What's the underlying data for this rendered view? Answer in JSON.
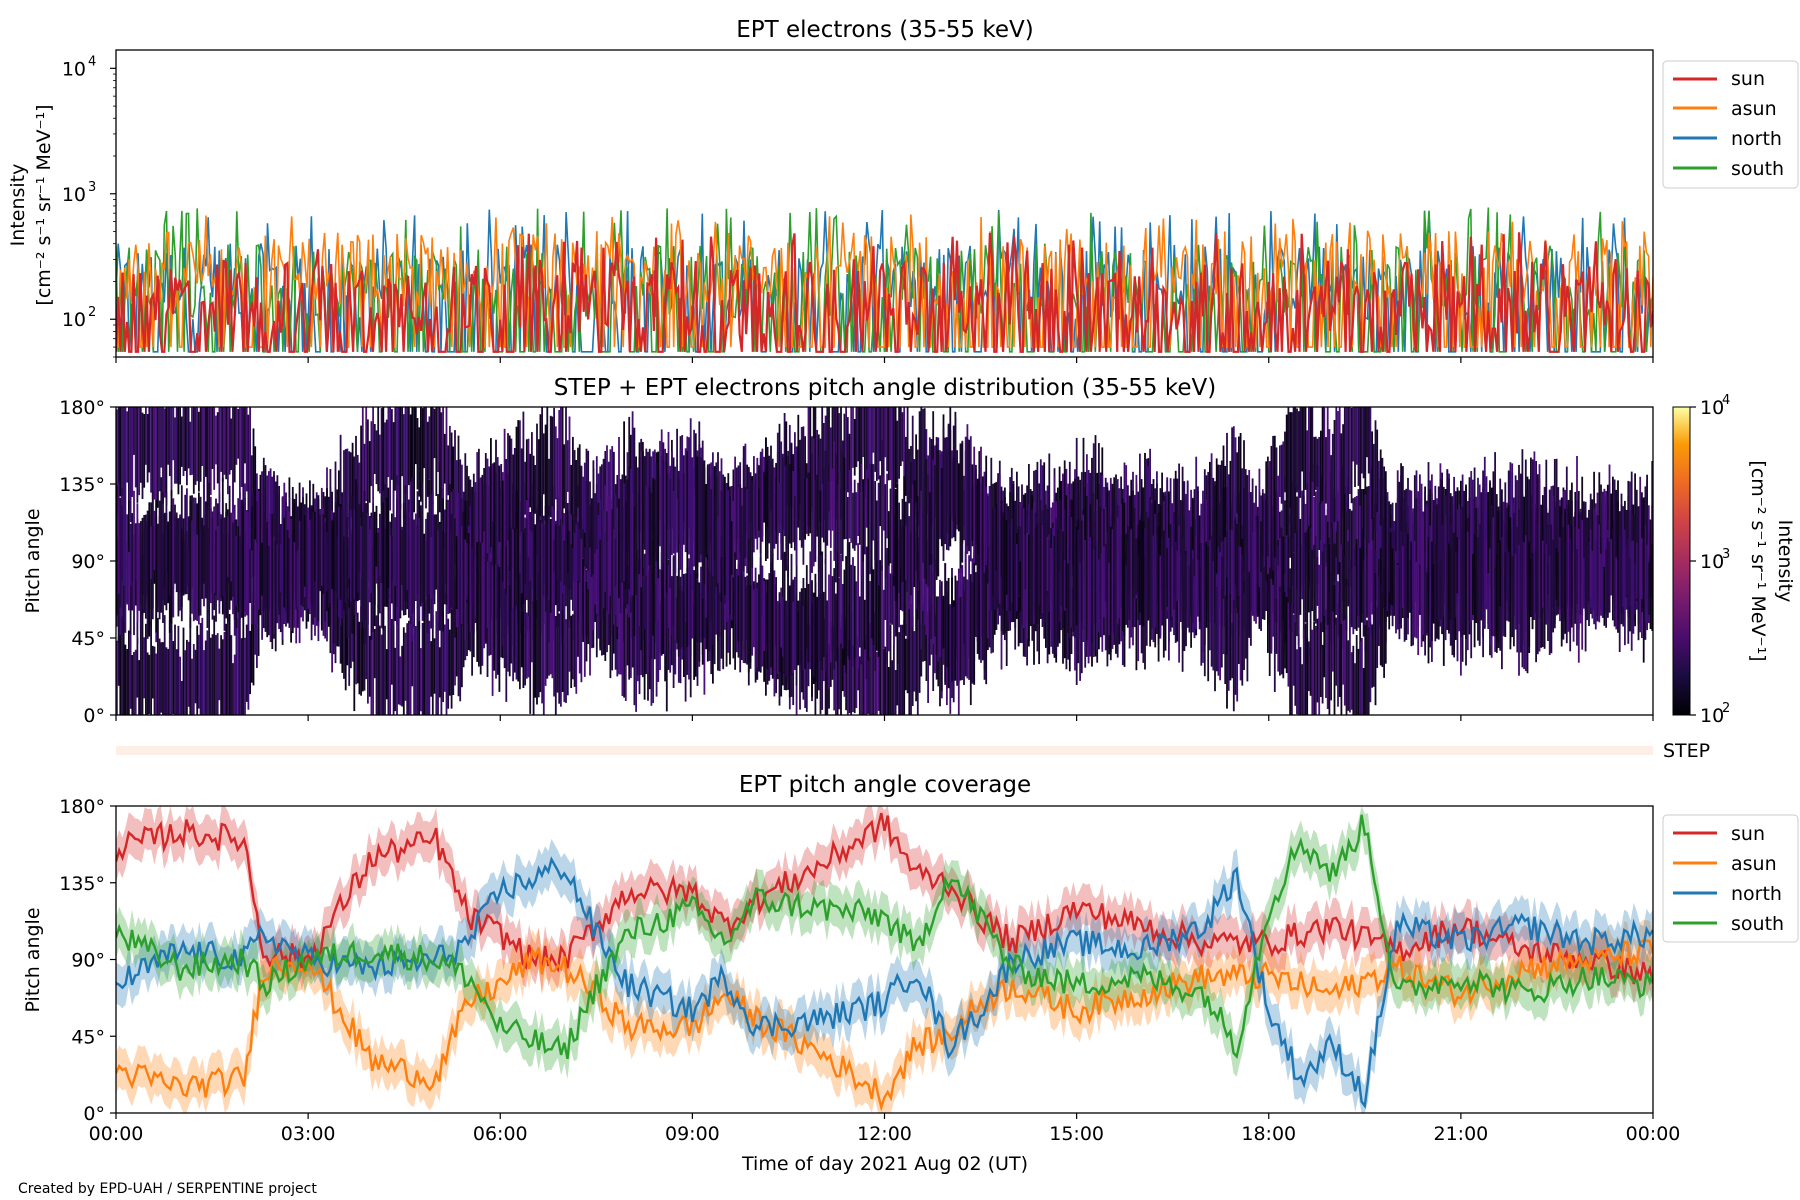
{
  "credit": "Created by EPD-UAH / SERPENTINE project",
  "colors": {
    "sun": "#d62728",
    "asun": "#ff7f0e",
    "north": "#1f77b4",
    "south": "#2ca02c",
    "step_band": "#fdeee6"
  },
  "chart_data": [
    {
      "type": "line",
      "title": "EPT electrons (35-55 keV)",
      "ylabel_line1": "Intensity",
      "ylabel_line2": "[cm⁻² s⁻¹ sr⁻¹ MeV⁻¹]",
      "yscale": "log",
      "ylim": [
        50,
        14000
      ],
      "yticks": [
        {
          "value": 100,
          "mantissa": "10",
          "exponent": "2"
        },
        {
          "value": 1000,
          "mantissa": "10",
          "exponent": "3"
        },
        {
          "value": 10000,
          "mantissa": "10",
          "exponent": "4"
        }
      ],
      "xlim_hours": [
        0,
        24
      ],
      "legend_position": "outside-right",
      "series": [
        {
          "name": "sun",
          "key": "sun",
          "typical": 150,
          "low": 55,
          "high": 500
        },
        {
          "name": "asun",
          "key": "asun",
          "typical": 250,
          "low": 60,
          "high": 700
        },
        {
          "name": "north",
          "key": "north",
          "typical": 200,
          "low": 55,
          "high": 750
        },
        {
          "name": "south",
          "key": "south",
          "typical": 200,
          "low": 55,
          "high": 780
        }
      ]
    },
    {
      "type": "heatmap",
      "title": "STEP + EPT electrons pitch angle distribution (35-55 keV)",
      "ylabel": "Pitch angle",
      "ylim": [
        0,
        180
      ],
      "yticks": [
        "0°",
        "45°",
        "90°",
        "135°",
        "180°"
      ],
      "ytick_values": [
        0,
        45,
        90,
        135,
        180
      ],
      "colorbar": {
        "label_line1": "Intensity",
        "label_line2": "[cm⁻² s⁻¹ sr⁻¹ MeV⁻¹]",
        "scale": "log",
        "range": [
          100,
          10000
        ],
        "ticks": [
          {
            "value": 100,
            "mantissa": "10",
            "exponent": "2"
          },
          {
            "value": 1000,
            "mantissa": "10",
            "exponent": "3"
          },
          {
            "value": 10000,
            "mantissa": "10",
            "exponent": "4"
          }
        ],
        "colormap": "inferno"
      },
      "typical_intensity": 150
    },
    {
      "type": "band",
      "label": "STEP"
    },
    {
      "type": "line",
      "title": "EPT pitch angle coverage",
      "ylabel": "Pitch angle",
      "ylim": [
        0,
        180
      ],
      "yticks": [
        "0°",
        "45°",
        "90°",
        "135°",
        "180°"
      ],
      "ytick_values": [
        0,
        45,
        90,
        135,
        180
      ],
      "xlabel": "Time of day 2021 Aug 02 (UT)",
      "x_ticks": [
        "00:00",
        "03:00",
        "06:00",
        "09:00",
        "12:00",
        "15:00",
        "18:00",
        "21:00",
        "00:00"
      ],
      "x_tick_hours": [
        0,
        3,
        6,
        9,
        12,
        15,
        18,
        21,
        24
      ],
      "legend_position": "outside-right",
      "series": [
        {
          "name": "sun",
          "key": "sun",
          "anchors": [
            [
              0,
              155
            ],
            [
              1,
              165
            ],
            [
              2,
              160
            ],
            [
              2.3,
              95
            ],
            [
              3,
              90
            ],
            [
              4,
              150
            ],
            [
              5,
              160
            ],
            [
              5.5,
              115
            ],
            [
              6,
              105
            ],
            [
              6.5,
              90
            ],
            [
              7,
              90
            ],
            [
              7.5,
              110
            ],
            [
              8,
              130
            ],
            [
              9,
              130
            ],
            [
              9.5,
              110
            ],
            [
              10,
              125
            ],
            [
              11,
              145
            ],
            [
              12,
              170
            ],
            [
              12.5,
              140
            ],
            [
              13,
              135
            ],
            [
              13.5,
              115
            ],
            [
              14,
              100
            ],
            [
              15,
              120
            ],
            [
              16,
              110
            ],
            [
              17,
              100
            ],
            [
              18,
              100
            ],
            [
              19,
              110
            ],
            [
              20,
              95
            ],
            [
              21,
              110
            ],
            [
              22,
              95
            ],
            [
              23,
              90
            ],
            [
              24,
              80
            ]
          ]
        },
        {
          "name": "asun",
          "key": "asun",
          "anchors": [
            [
              0,
              25
            ],
            [
              1,
              15
            ],
            [
              2,
              20
            ],
            [
              2.3,
              85
            ],
            [
              3,
              90
            ],
            [
              4,
              30
            ],
            [
              5,
              20
            ],
            [
              5.5,
              65
            ],
            [
              6,
              75
            ],
            [
              6.5,
              90
            ],
            [
              7,
              85
            ],
            [
              7.5,
              70
            ],
            [
              8,
              50
            ],
            [
              9,
              50
            ],
            [
              9.5,
              70
            ],
            [
              10,
              55
            ],
            [
              11,
              35
            ],
            [
              12,
              10
            ],
            [
              12.5,
              40
            ],
            [
              13,
              45
            ],
            [
              13.5,
              65
            ],
            [
              14,
              75
            ],
            [
              15,
              60
            ],
            [
              16,
              70
            ],
            [
              17,
              80
            ],
            [
              18,
              80
            ],
            [
              19,
              70
            ],
            [
              20,
              85
            ],
            [
              21,
              70
            ],
            [
              22,
              85
            ],
            [
              23,
              90
            ],
            [
              24,
              95
            ]
          ]
        },
        {
          "name": "north",
          "key": "north",
          "anchors": [
            [
              0,
              75
            ],
            [
              1,
              95
            ],
            [
              2,
              90
            ],
            [
              2.3,
              105
            ],
            [
              3,
              90
            ],
            [
              4,
              85
            ],
            [
              5,
              90
            ],
            [
              5.5,
              100
            ],
            [
              6,
              130
            ],
            [
              7,
              145
            ],
            [
              7.5,
              105
            ],
            [
              8,
              75
            ],
            [
              9,
              60
            ],
            [
              9.5,
              80
            ],
            [
              10,
              50
            ],
            [
              11,
              55
            ],
            [
              12,
              65
            ],
            [
              12.5,
              85
            ],
            [
              13,
              40
            ],
            [
              13.5,
              60
            ],
            [
              14,
              90
            ],
            [
              15,
              100
            ],
            [
              16,
              95
            ],
            [
              17,
              110
            ],
            [
              17.5,
              140
            ],
            [
              18,
              60
            ],
            [
              18.5,
              20
            ],
            [
              19,
              40
            ],
            [
              19.5,
              10
            ],
            [
              20,
              110
            ],
            [
              21,
              100
            ],
            [
              22,
              110
            ],
            [
              23,
              100
            ],
            [
              24,
              105
            ]
          ]
        },
        {
          "name": "south",
          "key": "south",
          "anchors": [
            [
              0,
              105
            ],
            [
              1,
              85
            ],
            [
              2,
              90
            ],
            [
              2.3,
              75
            ],
            [
              3,
              90
            ],
            [
              4,
              95
            ],
            [
              5,
              90
            ],
            [
              5.5,
              80
            ],
            [
              6,
              50
            ],
            [
              7,
              35
            ],
            [
              7.5,
              75
            ],
            [
              8,
              105
            ],
            [
              9,
              120
            ],
            [
              9.5,
              100
            ],
            [
              10,
              125
            ],
            [
              11,
              120
            ],
            [
              12,
              115
            ],
            [
              12.5,
              95
            ],
            [
              13,
              140
            ],
            [
              13.5,
              115
            ],
            [
              14,
              85
            ],
            [
              15,
              75
            ],
            [
              16,
              80
            ],
            [
              17,
              70
            ],
            [
              17.5,
              40
            ],
            [
              18,
              120
            ],
            [
              18.5,
              160
            ],
            [
              19,
              140
            ],
            [
              19.5,
              170
            ],
            [
              20,
              70
            ],
            [
              21,
              80
            ],
            [
              22,
              70
            ],
            [
              23,
              80
            ],
            [
              24,
              75
            ]
          ]
        }
      ],
      "band_halfwidth_deg": 12
    }
  ]
}
